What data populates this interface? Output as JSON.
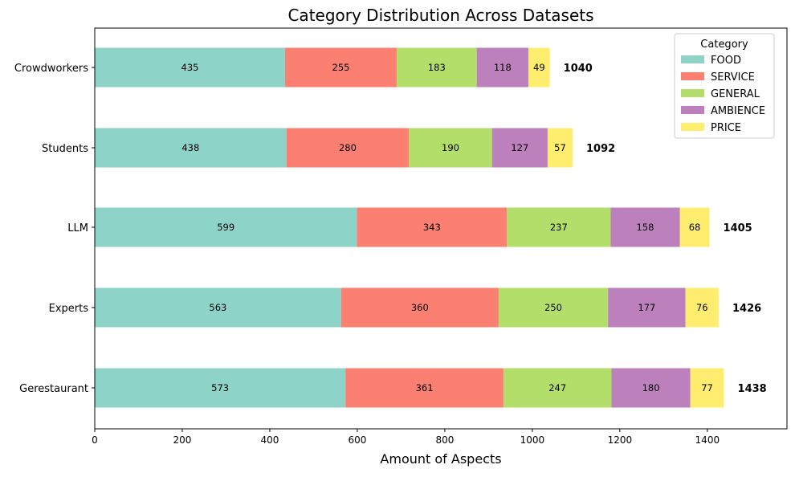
{
  "chart_data": {
    "type": "bar",
    "orientation": "horizontal",
    "stacked": true,
    "title": "Category Distribution Across Datasets",
    "xlabel": "Amount of Aspects",
    "ylabel": "",
    "xlim": [
      0,
      1582
    ],
    "xticks": [
      "0",
      "200",
      "400",
      "600",
      "800",
      "1000",
      "1200",
      "1400"
    ],
    "grid": false,
    "categories": [
      "Crowdworkers",
      "Students",
      "LLM",
      "Experts",
      "Gerestaurant"
    ],
    "series": [
      {
        "name": "FOOD",
        "color": "#8dd3c7",
        "values": [
          435,
          438,
          599,
          563,
          573
        ]
      },
      {
        "name": "SERVICE",
        "color": "#fb8072",
        "values": [
          255,
          280,
          343,
          360,
          361
        ]
      },
      {
        "name": "GENERAL",
        "color": "#b3de69",
        "values": [
          183,
          190,
          237,
          250,
          247
        ]
      },
      {
        "name": "AMBIENCE",
        "color": "#bc80bd",
        "values": [
          118,
          127,
          158,
          177,
          180
        ]
      },
      {
        "name": "PRICE",
        "color": "#ffed6f",
        "values": [
          49,
          57,
          68,
          76,
          77
        ]
      }
    ],
    "totals": [
      "1040",
      "1092",
      "1405",
      "1426",
      "1438"
    ],
    "legend": {
      "title": "Category",
      "placement": "top-right"
    }
  }
}
